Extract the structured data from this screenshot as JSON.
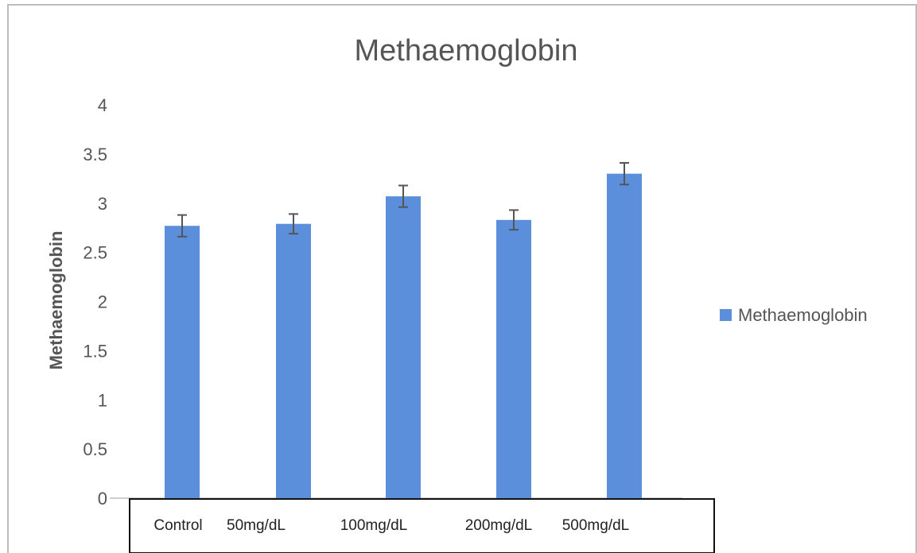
{
  "chart_data": {
    "type": "bar",
    "title": "Methaemoglobin",
    "xlabel": "",
    "ylabel": "Methaemoglobin",
    "categories": [
      "Control",
      "50mg/dL",
      "100mg/dL",
      "200mg/dL",
      "500mg/dL"
    ],
    "series": [
      {
        "name": "Methaemoglobin",
        "values": [
          2.77,
          2.79,
          3.07,
          2.83,
          3.3
        ],
        "errors": [
          0.11,
          0.1,
          0.11,
          0.1,
          0.11
        ]
      }
    ],
    "ylim": [
      0,
      4
    ],
    "yticks": [
      "0",
      "0.5",
      "1",
      "1.5",
      "2",
      "2.5",
      "3",
      "3.5",
      "4"
    ],
    "grid": false,
    "legend_position": "right",
    "colors": {
      "bar": "#5b8fdc",
      "error_bar": "#555555"
    }
  }
}
